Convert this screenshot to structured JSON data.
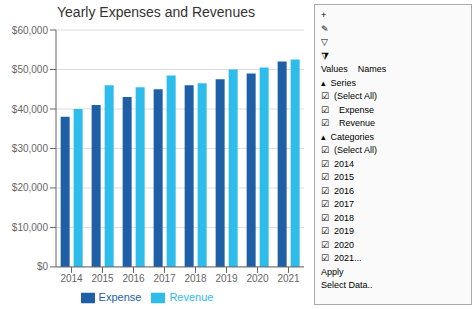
{
  "chart_data": {
    "type": "bar",
    "title": "Yearly Expenses and Revenues",
    "categories": [
      "2014",
      "2015",
      "2016",
      "2017",
      "2018",
      "2019",
      "2020",
      "2021"
    ],
    "series": [
      {
        "name": "Expense",
        "color": "#1f5fa6",
        "values": [
          38000,
          41000,
          43000,
          45000,
          46000,
          47500,
          49000,
          52000
        ]
      },
      {
        "name": "Revenue",
        "color": "#2ebceb",
        "values": [
          40000,
          46000,
          45500,
          48500,
          46500,
          50000,
          50500,
          52500
        ]
      }
    ],
    "ylim": [
      0,
      60000
    ],
    "yticks": [
      {
        "value": 0,
        "label": "$0"
      },
      {
        "value": 10000,
        "label": "$10,000"
      },
      {
        "value": 20000,
        "label": "$20,000"
      },
      {
        "value": 30000,
        "label": "$30,000"
      },
      {
        "value": 40000,
        "label": "$40,000"
      },
      {
        "value": 50000,
        "label": "$50,000"
      },
      {
        "value": 60000,
        "label": "$60,000"
      }
    ],
    "grid": true,
    "legend": "bottom",
    "annotations": [
      "+",
      "✎",
      "▽",
      "⧩",
      "Values    Names",
      "▴  Series",
      "☑  (Select All)",
      "☑    Expense",
      "☑    Revenue",
      "▴  Categories",
      "☑  (Select All)",
      "☑  2014",
      "☑  2015",
      "☑  2016",
      "☑  2017",
      "☑  2018",
      "☑  2019",
      "☑  2020",
      "☑  2021...",
      "Apply",
      "Select Data.."
    ]
  }
}
